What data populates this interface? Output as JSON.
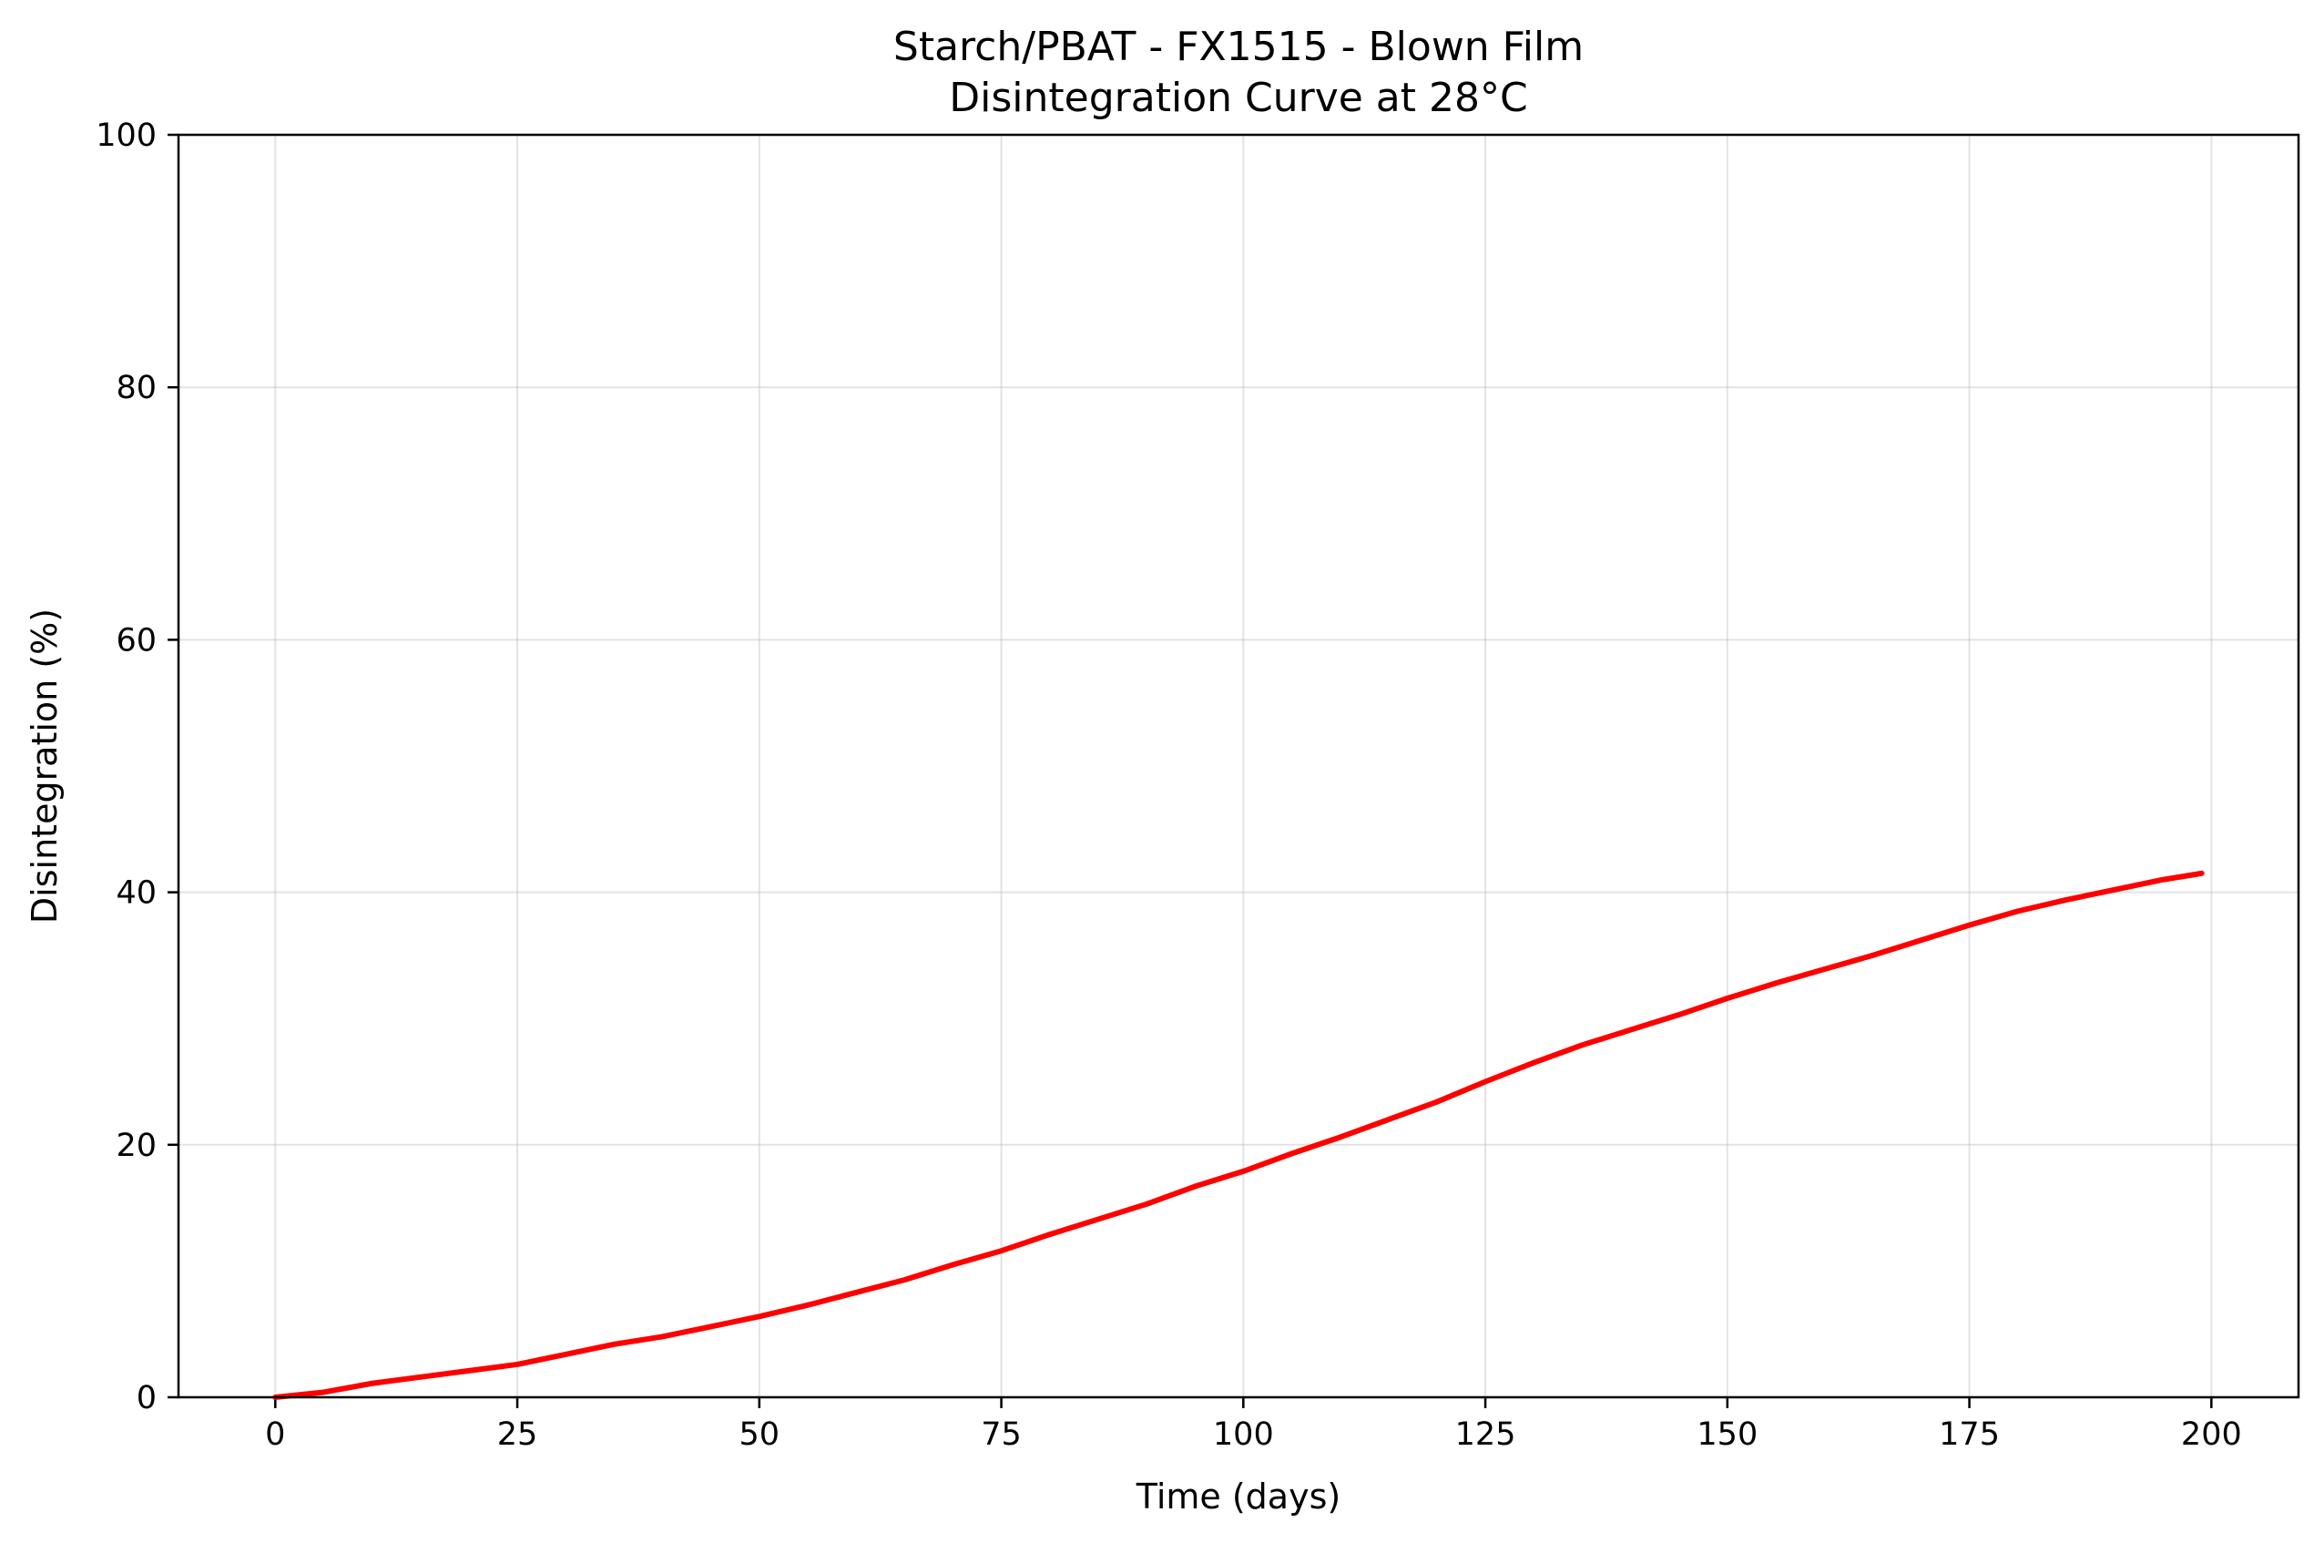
{
  "chart_data": {
    "type": "line",
    "title": "Starch/PBAT - FX1515 - Blown Film",
    "subtitle": "Disintegration Curve at 28°C",
    "xlabel": "Time (days)",
    "ylabel": "Disintegration (%)",
    "xlim": [
      -10,
      209
    ],
    "ylim": [
      0,
      100
    ],
    "x_ticks": [
      0,
      25,
      50,
      75,
      100,
      125,
      150,
      175,
      200
    ],
    "y_ticks": [
      0,
      20,
      40,
      60,
      80,
      100
    ],
    "grid": true,
    "legend": "none",
    "series": [
      {
        "color": "#ff0000",
        "x": [
          0,
          5,
          10,
          15,
          20,
          25,
          30,
          35,
          40,
          45,
          50,
          55,
          60,
          65,
          70,
          75,
          80,
          85,
          90,
          95,
          100,
          105,
          110,
          115,
          120,
          125,
          130,
          135,
          140,
          145,
          150,
          155,
          160,
          165,
          170,
          175,
          180,
          185,
          190,
          195,
          199
        ],
        "y": [
          0.0,
          0.4,
          1.1,
          1.6,
          2.1,
          2.6,
          3.4,
          4.2,
          4.8,
          5.6,
          6.4,
          7.3,
          8.3,
          9.3,
          10.5,
          11.6,
          12.9,
          14.1,
          15.3,
          16.7,
          17.9,
          19.3,
          20.6,
          22.0,
          23.4,
          25.0,
          26.5,
          27.9,
          29.1,
          30.3,
          31.6,
          32.8,
          33.9,
          35.0,
          36.2,
          37.4,
          38.5,
          39.4,
          40.2,
          41.0,
          41.5
        ]
      }
    ]
  }
}
